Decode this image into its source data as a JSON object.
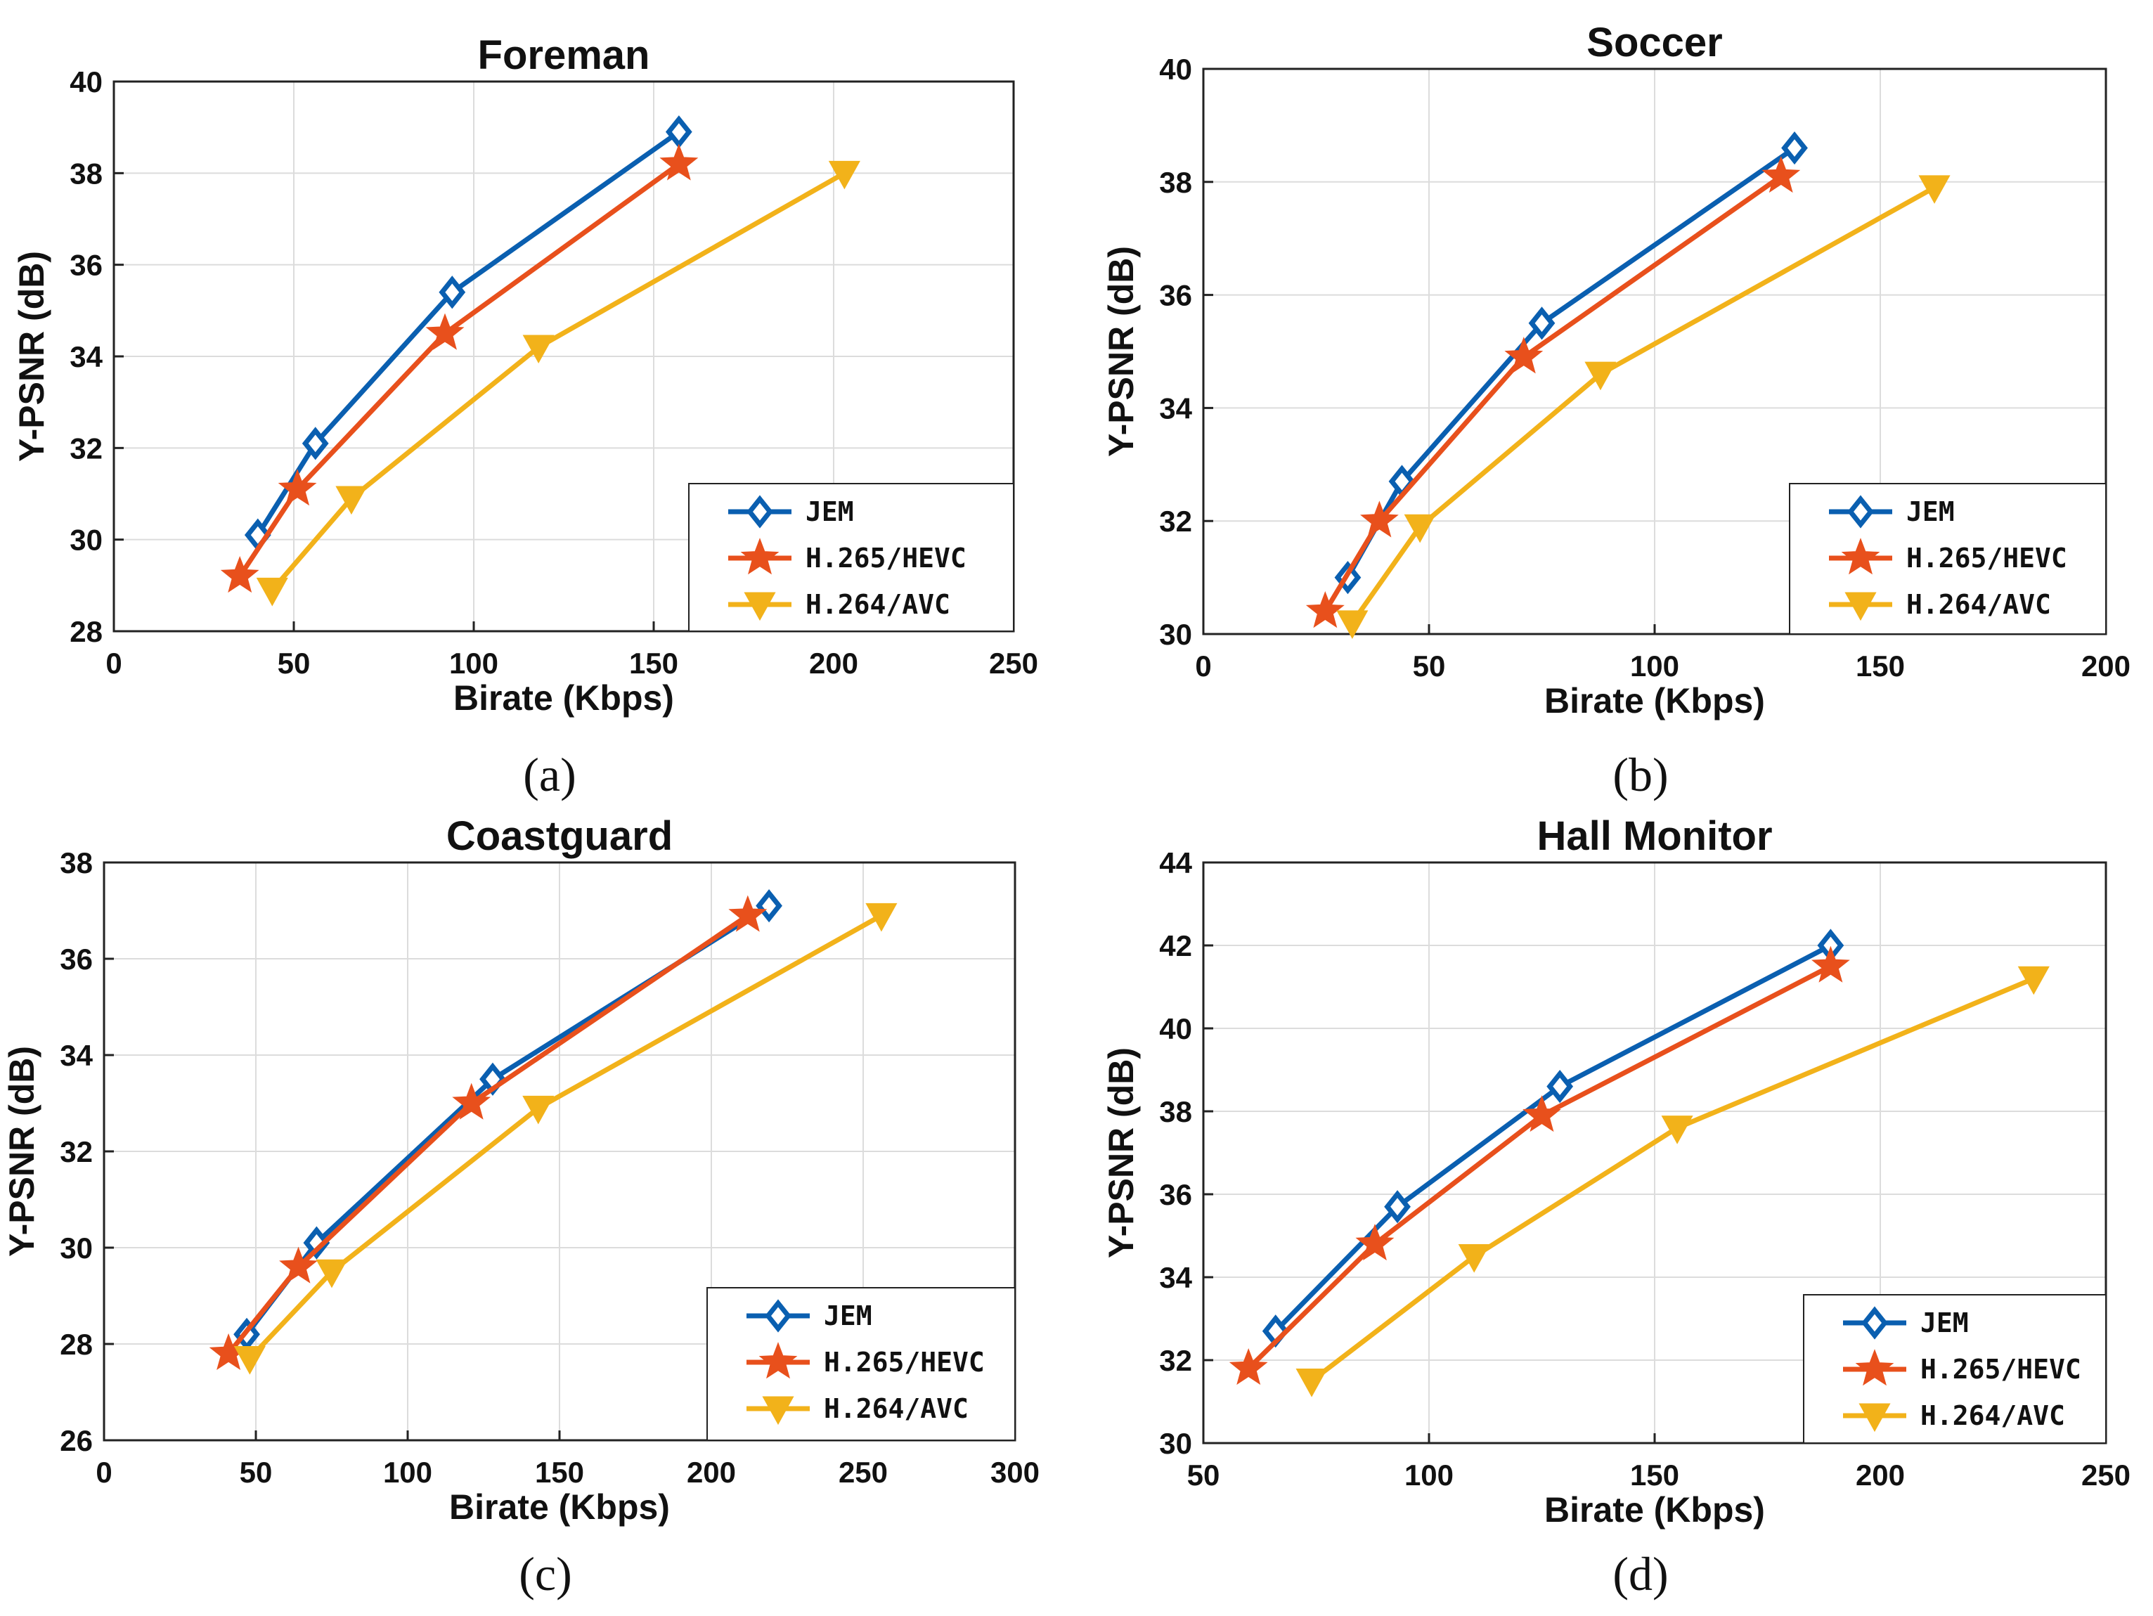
{
  "colors": {
    "JEM": "#0a5fb0",
    "H.265/HEVC": "#e8501c",
    "H.264/AVC": "#f2b21a"
  },
  "chart_data": [
    {
      "type": "line",
      "panel_label": "(a)",
      "title": "Foreman",
      "xlabel": "Birate (Kbps)",
      "ylabel": "Y-PSNR (dB)",
      "xlim": [
        0,
        250
      ],
      "ylim": [
        28,
        40
      ],
      "xticks": [
        0,
        50,
        100,
        150,
        200,
        250
      ],
      "yticks": [
        28,
        30,
        32,
        34,
        36,
        38,
        40
      ],
      "grid": true,
      "legend": "bottom-right",
      "series": [
        {
          "name": "JEM",
          "marker": "diamond",
          "x": [
            40,
            56,
            94,
            157
          ],
          "y": [
            30.1,
            32.1,
            35.4,
            38.9
          ]
        },
        {
          "name": "H.265/HEVC",
          "marker": "star",
          "x": [
            35,
            51,
            92,
            157
          ],
          "y": [
            29.2,
            31.1,
            34.5,
            38.2
          ]
        },
        {
          "name": "H.264/AVC",
          "marker": "triangle-down",
          "x": [
            44,
            66,
            118,
            203
          ],
          "y": [
            28.9,
            30.9,
            34.2,
            38.0
          ]
        }
      ]
    },
    {
      "type": "line",
      "panel_label": "(b)",
      "title": "Soccer",
      "xlabel": "Birate (Kbps)",
      "ylabel": "Y-PSNR (dB)",
      "xlim": [
        0,
        200
      ],
      "ylim": [
        30,
        40
      ],
      "xticks": [
        0,
        50,
        100,
        150,
        200
      ],
      "yticks": [
        30,
        32,
        34,
        36,
        38,
        40
      ],
      "grid": true,
      "legend": "bottom-right",
      "series": [
        {
          "name": "JEM",
          "marker": "diamond",
          "x": [
            32,
            44,
            75,
            131
          ],
          "y": [
            31.0,
            32.7,
            35.5,
            38.6
          ]
        },
        {
          "name": "H.265/HEVC",
          "marker": "star",
          "x": [
            27,
            39,
            71,
            128
          ],
          "y": [
            30.4,
            32.0,
            34.9,
            38.1
          ]
        },
        {
          "name": "H.264/AVC",
          "marker": "triangle-down",
          "x": [
            33,
            48,
            88,
            162
          ],
          "y": [
            30.2,
            31.9,
            34.6,
            37.9
          ]
        }
      ]
    },
    {
      "type": "line",
      "panel_label": "(c)",
      "title": "Coastguard",
      "xlabel": "Birate (Kbps)",
      "ylabel": "Y-PSNR (dB)",
      "xlim": [
        0,
        300
      ],
      "ylim": [
        26,
        38
      ],
      "xticks": [
        0,
        50,
        100,
        150,
        200,
        250,
        300
      ],
      "yticks": [
        26,
        28,
        30,
        32,
        34,
        36,
        38
      ],
      "grid": true,
      "legend": "bottom-right",
      "series": [
        {
          "name": "JEM",
          "marker": "diamond",
          "x": [
            47,
            70,
            128,
            219
          ],
          "y": [
            28.2,
            30.1,
            33.5,
            37.1
          ]
        },
        {
          "name": "H.265/HEVC",
          "marker": "star",
          "x": [
            41,
            64,
            121,
            212
          ],
          "y": [
            27.8,
            29.6,
            33.0,
            36.9
          ]
        },
        {
          "name": "H.264/AVC",
          "marker": "triangle-down",
          "x": [
            48,
            75,
            143,
            256
          ],
          "y": [
            27.7,
            29.5,
            32.9,
            36.9
          ]
        }
      ]
    },
    {
      "type": "line",
      "panel_label": "(d)",
      "title": "Hall Monitor",
      "xlabel": "Birate (Kbps)",
      "ylabel": "Y-PSNR (dB)",
      "xlim": [
        50,
        250
      ],
      "ylim": [
        30,
        44
      ],
      "xticks": [
        50,
        100,
        150,
        200,
        250
      ],
      "yticks": [
        30,
        32,
        34,
        36,
        38,
        40,
        42,
        44
      ],
      "grid": true,
      "legend": "bottom-right",
      "series": [
        {
          "name": "JEM",
          "marker": "diamond",
          "x": [
            66,
            93,
            129,
            189
          ],
          "y": [
            32.7,
            35.7,
            38.6,
            42.0
          ]
        },
        {
          "name": "H.265/HEVC",
          "marker": "star",
          "x": [
            60,
            88,
            125,
            189
          ],
          "y": [
            31.8,
            34.8,
            37.9,
            41.5
          ]
        },
        {
          "name": "H.264/AVC",
          "marker": "triangle-down",
          "x": [
            74,
            110,
            155,
            234
          ],
          "y": [
            31.5,
            34.5,
            37.6,
            41.2
          ]
        }
      ]
    }
  ]
}
